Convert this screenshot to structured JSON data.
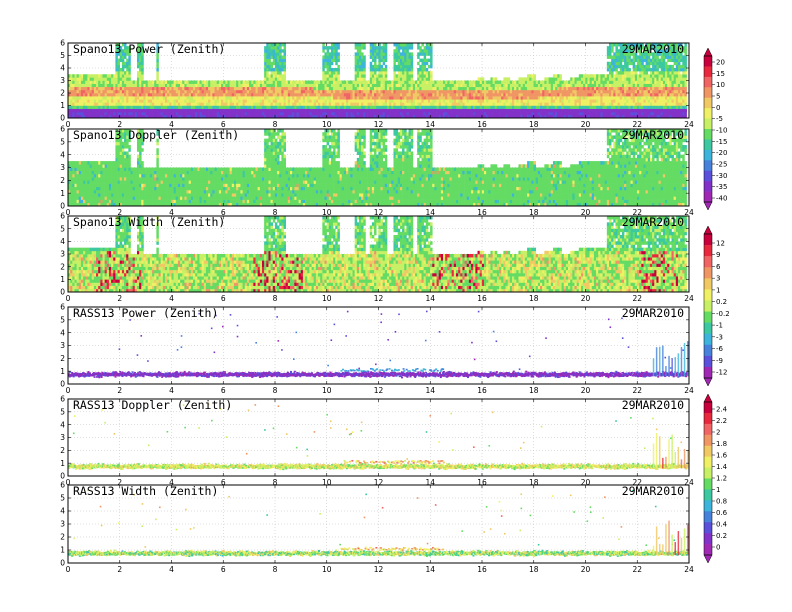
{
  "chart_data": {
    "type": "heatmap",
    "date": "29MAR2010",
    "x_ticks": [
      "0",
      "2",
      "4",
      "6",
      "8",
      "10",
      "12",
      "14",
      "16",
      "18",
      "20",
      "22",
      "24"
    ],
    "y_ticks": [
      "0",
      "1",
      "2",
      "3",
      "4",
      "5",
      "6"
    ],
    "xlim": [
      0,
      24
    ],
    "ylim": [
      0,
      6
    ],
    "grid": true,
    "panels": [
      {
        "title": "Spano13 Power (Zenith)",
        "kind": "dense",
        "variable": "power",
        "colorbar": "power"
      },
      {
        "title": "Spano13 Doppler (Zenith)",
        "kind": "dense",
        "variable": "doppler",
        "colorbar": "power"
      },
      {
        "title": "Spano13 Width (Zenith)",
        "kind": "dense",
        "variable": "width",
        "colorbar": "spanwidth"
      },
      {
        "title": "RASS13 Power (Zenith)",
        "kind": "sparse",
        "variable": "rpower",
        "colorbar": "spanwidth"
      },
      {
        "title": "RASS13 Doppler (Zenith)",
        "kind": "sparse",
        "variable": "rdop",
        "colorbar": "rass"
      },
      {
        "title": "RASS13 Width (Zenith)",
        "kind": "sparse",
        "variable": "rwidth",
        "colorbar": "rass"
      }
    ],
    "colorbars": {
      "power": {
        "labels": [
          "20",
          "15",
          "10",
          "5",
          "0",
          "-5",
          "-10",
          "-15",
          "-20",
          "-25",
          "-30",
          "-35",
          "-40"
        ],
        "colors": [
          "#c8003c",
          "#e8283c",
          "#f06464",
          "#f09664",
          "#f0c864",
          "#f0f064",
          "#c8f064",
          "#64dc64",
          "#3cc8a0",
          "#3cb4dc",
          "#4682dc",
          "#5a50dc",
          "#8232c8",
          "#a028b4"
        ]
      },
      "spanwidth": {
        "labels": [
          "12",
          "9",
          "6",
          "3",
          "1",
          "0.2",
          "-0.2",
          "-1",
          "-3",
          "-6",
          "-9",
          "-12"
        ],
        "colors": [
          "#c8003c",
          "#e8283c",
          "#f06464",
          "#f09664",
          "#f0c864",
          "#f0f064",
          "#c8f064",
          "#64dc64",
          "#3cc8a0",
          "#3cb4dc",
          "#4682dc",
          "#5a50dc",
          "#a028b4"
        ]
      },
      "rass": {
        "labels": [
          "2.4",
          "2.2",
          "2",
          "1.8",
          "1.6",
          "1.4",
          "1.2",
          "1",
          "0.8",
          "0.6",
          "0.4",
          "0.2",
          "0"
        ],
        "colors": [
          "#c8003c",
          "#e8283c",
          "#f06464",
          "#f09664",
          "#f0c864",
          "#f0f064",
          "#c8f064",
          "#64dc64",
          "#3cc8a0",
          "#3cb4dc",
          "#4682dc",
          "#5a50dc",
          "#8232c8",
          "#a028b4"
        ]
      }
    }
  }
}
